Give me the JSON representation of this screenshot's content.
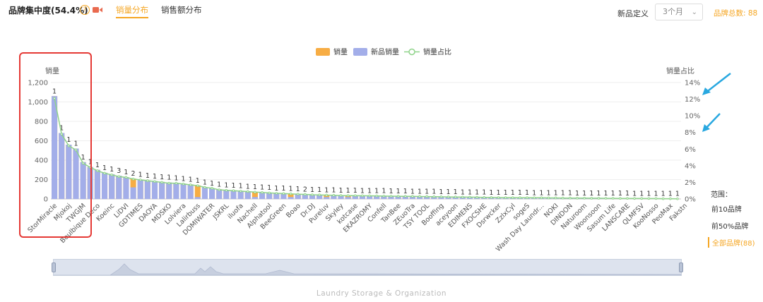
{
  "header": {
    "title": "品牌集中度(54.4%)",
    "tabs": [
      {
        "label": "销量分布",
        "active": true
      },
      {
        "label": "销售额分布",
        "active": false
      }
    ],
    "new_def_label": "新品定义",
    "new_def_value": "3个月",
    "brand_total": "品牌总数: 88"
  },
  "colors": {
    "accent": "#f5a623",
    "sales": "#f7ad44",
    "new_sales": "#a3aee9",
    "share_line": "#8fd38a",
    "highlight": "#e53935",
    "arrow": "#29a8e0"
  },
  "range_panel": {
    "title": "范围：",
    "options": [
      {
        "label": "前10品牌",
        "active": false
      },
      {
        "label": "前50%品牌",
        "active": false
      },
      {
        "label": "全部品牌(88)",
        "active": true
      }
    ]
  },
  "footer_category": "Laundry Storage & Organization",
  "chart_data": {
    "type": "bar",
    "legend": [
      "销量",
      "新品销量",
      "销量占比"
    ],
    "legend_position": "top-center",
    "ylabel": "销量",
    "ylabel_right": "销量占比",
    "ylim": [
      0,
      1200
    ],
    "yticks": [
      "0",
      "200",
      "400",
      "600",
      "800",
      "1,000",
      "1,200"
    ],
    "y2lim": [
      0,
      14
    ],
    "y2ticks": [
      "0%",
      "2%",
      "4%",
      "6%",
      "8%",
      "10%",
      "12%",
      "14%"
    ],
    "grid": true,
    "brand_count": 88,
    "x_tick_labels": [
      "StorMiracle",
      "Mjokoj",
      "TWGJM",
      "Boulbique Deco",
      "Koeinc",
      "LiDVI",
      "GDTIMES",
      "DAOYA",
      "MDSKO",
      "Lolviera",
      "Lalirbuss",
      "DOMIWATER",
      "JSKRL",
      "iluofa",
      "Nachell",
      "Alphatool",
      "BeeGreen",
      "Boao",
      "Dr.DJ",
      "Pureluv",
      "Skyley",
      "kotcase",
      "EKAZROMY",
      "Confell",
      "TanBee",
      "ZEuoTra",
      "TSY TOOL",
      "Booffing",
      "aceyoon",
      "EDIMENS",
      "FXOCSHE",
      "Dsrwcker",
      "ZzlxCyl",
      "sogeS",
      "Wash Day Laundr...",
      "NOKI",
      "DINDON",
      "Naturoom",
      "Woonsoon",
      "Sasum Life",
      "LANSCARE",
      "QLMFSV",
      "KooNosso",
      "PeoMax",
      "Fakstn"
    ],
    "x_tick_every": 2,
    "series": [
      {
        "name": "销量",
        "values": [
          1060,
          680,
          560,
          520,
          380,
          330,
          300,
          270,
          255,
          240,
          225,
          210,
          200,
          190,
          183,
          176,
          170,
          165,
          158,
          150,
          140,
          120,
          110,
          100,
          92,
          88,
          82,
          78,
          72,
          68,
          64,
          60,
          57,
          54,
          51,
          48,
          45,
          43,
          41,
          39,
          37,
          36,
          35,
          34,
          33,
          32,
          31,
          30,
          29,
          28,
          27,
          26,
          25,
          24,
          23,
          22,
          21,
          20,
          19,
          18,
          17,
          16,
          15,
          14,
          14,
          13,
          13,
          12,
          12,
          11,
          11,
          10,
          10,
          9,
          9,
          8,
          8,
          7,
          7,
          6,
          6,
          5,
          5,
          4,
          4,
          3,
          3,
          2
        ]
      },
      {
        "name": "新品销量",
        "values": [
          1060,
          680,
          560,
          520,
          380,
          330,
          300,
          270,
          255,
          240,
          225,
          120,
          200,
          190,
          183,
          176,
          170,
          165,
          158,
          150,
          20,
          120,
          110,
          100,
          92,
          88,
          82,
          78,
          20,
          68,
          64,
          60,
          57,
          20,
          51,
          48,
          45,
          43,
          20,
          39,
          37,
          20,
          35,
          34,
          33,
          32,
          31,
          30,
          29,
          28,
          27,
          26,
          25,
          24,
          23,
          22,
          21,
          20,
          19,
          18,
          17,
          16,
          15,
          14,
          14,
          13,
          13,
          12,
          12,
          11,
          11,
          10,
          10,
          9,
          9,
          8,
          8,
          7,
          7,
          6,
          6,
          5,
          5,
          4,
          4,
          3,
          3,
          2
        ]
      },
      {
        "name": "销量占比",
        "values": [
          12.1,
          7.8,
          6.4,
          5.9,
          4.3,
          3.8,
          3.4,
          3.1,
          2.9,
          2.7,
          2.6,
          2.4,
          2.3,
          2.2,
          2.1,
          2.0,
          1.9,
          1.9,
          1.8,
          1.7,
          1.6,
          1.4,
          1.3,
          1.1,
          1.05,
          1.0,
          0.94,
          0.89,
          0.82,
          0.78,
          0.73,
          0.69,
          0.65,
          0.62,
          0.58,
          0.55,
          0.51,
          0.49,
          0.47,
          0.45,
          0.42,
          0.41,
          0.4,
          0.39,
          0.38,
          0.37,
          0.35,
          0.34,
          0.33,
          0.32,
          0.31,
          0.3,
          0.29,
          0.27,
          0.26,
          0.25,
          0.24,
          0.23,
          0.22,
          0.21,
          0.19,
          0.18,
          0.17,
          0.16,
          0.16,
          0.15,
          0.15,
          0.14,
          0.14,
          0.13,
          0.13,
          0.11,
          0.11,
          0.1,
          0.1,
          0.09,
          0.09,
          0.08,
          0.08,
          0.07,
          0.07,
          0.06,
          0.06,
          0.05,
          0.05,
          0.03,
          0.03,
          0.02
        ]
      }
    ],
    "data_labels": [
      "1",
      "1",
      "1",
      "1",
      "1",
      "1",
      "1",
      "1",
      "1",
      "3",
      "1",
      "2",
      "1",
      "1",
      "1",
      "1",
      "1",
      "1",
      "1",
      "1",
      "1",
      "1",
      "1",
      "1",
      "1",
      "1",
      "1",
      "1",
      "1",
      "1",
      "1",
      "1",
      "1",
      "1",
      "1",
      "2",
      "1",
      "1",
      "1",
      "1",
      "1",
      "1",
      "1",
      "1",
      "1",
      "1",
      "1",
      "1",
      "1",
      "1",
      "1",
      "1",
      "1",
      "1",
      "1",
      "1",
      "1",
      "1",
      "1",
      "1",
      "1",
      "1",
      "1",
      "1",
      "1",
      "1",
      "1",
      "1",
      "1",
      "1",
      "1",
      "1",
      "1",
      "1",
      "1",
      "1",
      "1",
      "1",
      "1",
      "1",
      "1",
      "1",
      "1",
      "1",
      "1",
      "1",
      "1",
      "1"
    ]
  }
}
